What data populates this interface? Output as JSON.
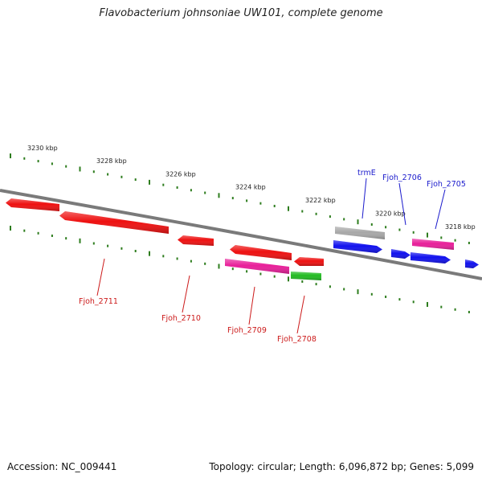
{
  "title": "Flavobacterium johnsoniae UW101, complete genome",
  "footer": {
    "accession": "Accession: NC_009441",
    "stats": "Topology: circular; Length: 6,096,872 bp; Genes: 5,099"
  },
  "scale_unit": "kbp",
  "ticks": [
    {
      "label": "3230 kbp",
      "kb": 3230
    },
    {
      "label": "3228 kbp",
      "kb": 3228
    },
    {
      "label": "3226 kbp",
      "kb": 3226
    },
    {
      "label": "3224 kbp",
      "kb": 3224
    },
    {
      "label": "3222 kbp",
      "kb": 3222
    },
    {
      "label": "3220 kbp",
      "kb": 3220
    },
    {
      "label": "3218 kbp",
      "kb": 3218
    }
  ],
  "colors": {
    "backbone": "#7a7a7a",
    "tick": "#2e7d1e",
    "label_forward": "#1a1acc",
    "label_reverse": "#cc1a1a",
    "red": "#ee1111",
    "blue": "#1111ee",
    "pink": "#e8209a",
    "green": "#22bb22",
    "gray": "#a8a8a8"
  },
  "genes": [
    {
      "id": "g1",
      "track": "fwd_outer",
      "color": "red",
      "dir": "left",
      "name": ""
    },
    {
      "id": "g2",
      "track": "fwd_outer",
      "color": "red",
      "dir": "left",
      "name": ""
    },
    {
      "id": "g3",
      "track": "fwd_outer",
      "color": "red",
      "dir": "left",
      "name": ""
    },
    {
      "id": "g4",
      "track": "fwd_outer",
      "color": "red",
      "dir": "left",
      "name": ""
    },
    {
      "id": "g5",
      "track": "fwd_outer",
      "color": "red",
      "dir": "left",
      "name": ""
    },
    {
      "id": "g6",
      "track": "fwd_inner",
      "color": "pink",
      "dir": "none",
      "name": ""
    },
    {
      "id": "g7",
      "track": "fwd_inner",
      "color": "green",
      "dir": "none",
      "name": ""
    },
    {
      "id": "g8",
      "track": "rev_outer",
      "color": "gray",
      "dir": "none",
      "name": ""
    },
    {
      "id": "g9",
      "track": "rev_inner",
      "color": "blue",
      "dir": "right",
      "name": ""
    },
    {
      "id": "g10",
      "track": "rev_outer",
      "color": "pink",
      "dir": "none",
      "name": ""
    },
    {
      "id": "g11",
      "track": "rev_inner",
      "color": "blue",
      "dir": "right",
      "name": ""
    },
    {
      "id": "g12",
      "track": "rev_inner",
      "color": "blue",
      "dir": "right",
      "name": ""
    },
    {
      "id": "g13",
      "track": "rev_inner",
      "color": "blue",
      "dir": "right",
      "name": ""
    }
  ],
  "labels": [
    {
      "text": "trmE",
      "strand": "forward",
      "gene": "g8"
    },
    {
      "text": "Fjoh_2706",
      "strand": "forward",
      "gene": "g11"
    },
    {
      "text": "Fjoh_2705",
      "strand": "forward",
      "gene": "g12"
    },
    {
      "text": "Fjoh_2711",
      "strand": "reverse",
      "gene": "g2"
    },
    {
      "text": "Fjoh_2710",
      "strand": "reverse",
      "gene": "g3"
    },
    {
      "text": "Fjoh_2709",
      "strand": "reverse",
      "gene": "g6"
    },
    {
      "text": "Fjoh_2708",
      "strand": "reverse",
      "gene": "g7"
    }
  ]
}
